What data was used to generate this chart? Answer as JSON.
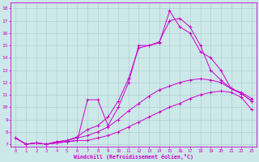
{
  "xlabel": "Windchill (Refroidissement éolien,°C)",
  "bg_color": "#cce8e8",
  "line_color": "#cc00cc",
  "grid_color": "#aacccc",
  "xlim": [
    -0.5,
    23.5
  ],
  "ylim": [
    6.8,
    18.5
  ],
  "yticks": [
    7,
    8,
    9,
    10,
    11,
    12,
    13,
    14,
    15,
    16,
    17,
    18
  ],
  "xticks": [
    0,
    1,
    2,
    3,
    4,
    5,
    6,
    7,
    8,
    9,
    10,
    11,
    12,
    13,
    14,
    15,
    16,
    17,
    18,
    19,
    20,
    21,
    22,
    23
  ],
  "series": [
    {
      "x": [
        0,
        1,
        2,
        3,
        4,
        5,
        6,
        7,
        8,
        9,
        10,
        11,
        12,
        13,
        14,
        15,
        16,
        17,
        18,
        19,
        20,
        21,
        22,
        23
      ],
      "y": [
        7.5,
        7.0,
        7.1,
        7.0,
        7.1,
        7.2,
        7.3,
        7.3,
        7.5,
        7.7,
        8.0,
        8.4,
        8.8,
        9.2,
        9.6,
        10.0,
        10.3,
        10.7,
        11.0,
        11.2,
        11.3,
        11.2,
        10.8,
        9.8
      ]
    },
    {
      "x": [
        0,
        1,
        2,
        3,
        4,
        5,
        6,
        7,
        8,
        9,
        10,
        11,
        12,
        13,
        14,
        15,
        16,
        17,
        18,
        19,
        20,
        21,
        22,
        23
      ],
      "y": [
        7.5,
        7.0,
        7.1,
        7.0,
        7.2,
        7.3,
        7.5,
        7.7,
        8.0,
        8.4,
        9.0,
        9.7,
        10.3,
        10.9,
        11.4,
        11.7,
        12.0,
        12.2,
        12.3,
        12.2,
        12.0,
        11.5,
        11.1,
        10.5
      ]
    },
    {
      "x": [
        0,
        1,
        2,
        3,
        4,
        5,
        6,
        7,
        8,
        9,
        10,
        11,
        12,
        13,
        14,
        15,
        16,
        17,
        18,
        19,
        20,
        21,
        22,
        23
      ],
      "y": [
        7.5,
        7.0,
        7.1,
        7.0,
        7.1,
        7.2,
        7.3,
        10.6,
        10.6,
        8.5,
        10.0,
        12.0,
        15.0,
        15.0,
        15.2,
        17.8,
        16.5,
        16.0,
        14.5,
        14.0,
        13.0,
        11.5,
        11.1,
        10.5
      ]
    },
    {
      "x": [
        0,
        1,
        2,
        3,
        4,
        5,
        6,
        7,
        8,
        9,
        10,
        11,
        12,
        13,
        14,
        15,
        16,
        17,
        18,
        19,
        20,
        21,
        22,
        23
      ],
      "y": [
        7.5,
        7.0,
        7.1,
        7.0,
        7.2,
        7.3,
        7.6,
        8.2,
        8.5,
        9.2,
        10.5,
        12.3,
        14.8,
        15.0,
        15.3,
        17.0,
        17.2,
        16.5,
        15.0,
        13.0,
        12.2,
        11.5,
        11.2,
        10.7
      ]
    }
  ]
}
